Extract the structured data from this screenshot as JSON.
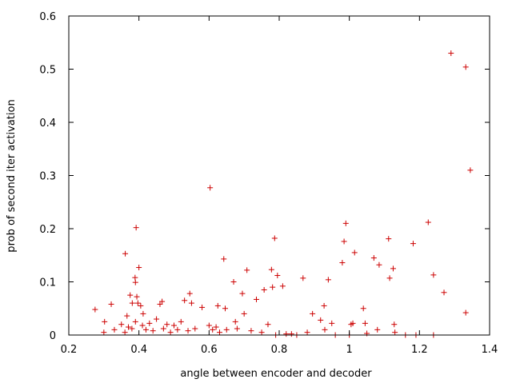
{
  "chart_data": {
    "type": "scatter",
    "title": "",
    "xlabel": "angle between encoder and decoder",
    "ylabel": "prob of second iter activation",
    "xlim": [
      0.2,
      1.4
    ],
    "ylim": [
      0,
      0.6
    ],
    "x_ticks": [
      "0.2",
      "0.4",
      "0.6",
      "0.8",
      "1",
      "1.2",
      "1.4"
    ],
    "y_ticks": [
      "0",
      "0.1",
      "0.2",
      "0.3",
      "0.4",
      "0.5",
      "0.6"
    ],
    "grid": false,
    "legend": "none",
    "marker": "plus",
    "color": "#cc0000",
    "series": [
      {
        "x": [
          0.275,
          0.302,
          0.321,
          0.361,
          0.366,
          0.375,
          0.381,
          0.389,
          0.39,
          0.392,
          0.394,
          0.397,
          0.4,
          0.405,
          0.412,
          0.46,
          0.466,
          0.53,
          0.545,
          0.55,
          0.58,
          0.603,
          0.625,
          0.642,
          0.646,
          0.67,
          0.675,
          0.695,
          0.7,
          0.708,
          0.735,
          0.757,
          0.768,
          0.778,
          0.781,
          0.787,
          0.795,
          0.81,
          0.835,
          0.868,
          0.895,
          0.918,
          0.928,
          0.94,
          0.95,
          0.98,
          0.985,
          0.99,
          1.005,
          1.01,
          1.015,
          1.04,
          1.045,
          1.07,
          1.085,
          1.112,
          1.115,
          1.125,
          1.128,
          1.182,
          1.225,
          1.24,
          1.27,
          1.29,
          1.332,
          1.332,
          1.345,
          0.3,
          0.33,
          0.35,
          0.36,
          0.37,
          0.38,
          0.39,
          0.41,
          0.42,
          0.43,
          0.44,
          0.45,
          0.47,
          0.48,
          0.49,
          0.5,
          0.51,
          0.52,
          0.54,
          0.56,
          0.6,
          0.61,
          0.62,
          0.63,
          0.65,
          0.68,
          0.72,
          0.75,
          0.79,
          0.82,
          0.85,
          0.88,
          0.93,
          0.96,
          1.0,
          1.05,
          1.08,
          1.13,
          1.16,
          1.19,
          1.24
        ],
        "y": [
          0.048,
          0.025,
          0.058,
          0.153,
          0.036,
          0.075,
          0.06,
          0.108,
          0.099,
          0.202,
          0.072,
          0.06,
          0.127,
          0.055,
          0.04,
          0.058,
          0.063,
          0.065,
          0.078,
          0.06,
          0.052,
          0.277,
          0.055,
          0.143,
          0.05,
          0.1,
          0.025,
          0.078,
          0.04,
          0.122,
          0.067,
          0.085,
          0.02,
          0.123,
          0.09,
          0.182,
          0.112,
          0.092,
          0.002,
          0.107,
          0.04,
          0.028,
          0.055,
          0.104,
          0.022,
          0.136,
          0.176,
          0.21,
          0.02,
          0.022,
          0.155,
          0.05,
          0.022,
          0.145,
          0.132,
          0.181,
          0.107,
          0.125,
          0.02,
          0.172,
          0.212,
          0.113,
          0.08,
          0.53,
          0.504,
          0.042,
          0.31,
          0.005,
          0.01,
          0.02,
          0.005,
          0.015,
          0.012,
          0.025,
          0.018,
          0.01,
          0.022,
          0.008,
          0.03,
          0.012,
          0.02,
          0.005,
          0.018,
          0.01,
          0.025,
          0.008,
          0.012,
          0.018,
          0.01,
          0.015,
          0.005,
          0.01,
          0.012,
          0.008,
          0.005,
          0.0,
          0.002,
          0.0,
          0.005,
          0.01,
          0.0,
          0.0,
          0.003,
          0.01,
          0.005,
          0.0,
          0.0,
          0.0
        ]
      }
    ]
  }
}
